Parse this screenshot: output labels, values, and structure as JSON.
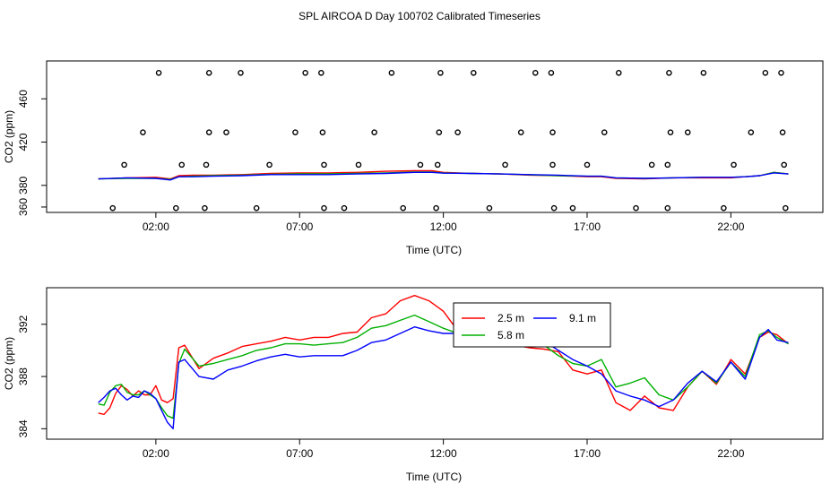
{
  "title": "SPL AIRCOA D  Day 100702  Calibrated Timeseries",
  "chart_data": [
    {
      "type": "scatter",
      "xlabel": "Time (UTC)",
      "ylabel": "CO2 (ppm)",
      "xlim": [
        -1.8,
        25.2
      ],
      "ylim": [
        355,
        495
      ],
      "xticks": [
        2,
        7,
        12,
        17,
        22
      ],
      "xtick_labels": [
        "02:00",
        "07:00",
        "12:00",
        "17:00",
        "22:00"
      ],
      "yticks": [
        360,
        380,
        420,
        460
      ],
      "ytick_labels": [
        "360",
        "380",
        "420",
        "460"
      ],
      "markers": [
        {
          "x": 2.1,
          "y": 484
        },
        {
          "x": 3.85,
          "y": 484
        },
        {
          "x": 4.95,
          "y": 484
        },
        {
          "x": 7.2,
          "y": 484
        },
        {
          "x": 7.75,
          "y": 484
        },
        {
          "x": 10.2,
          "y": 484
        },
        {
          "x": 11.9,
          "y": 484
        },
        {
          "x": 13.05,
          "y": 484
        },
        {
          "x": 15.2,
          "y": 484
        },
        {
          "x": 15.75,
          "y": 484
        },
        {
          "x": 18.1,
          "y": 484
        },
        {
          "x": 19.85,
          "y": 484
        },
        {
          "x": 21.05,
          "y": 484
        },
        {
          "x": 23.2,
          "y": 484
        },
        {
          "x": 23.75,
          "y": 484
        },
        {
          "x": 1.55,
          "y": 429
        },
        {
          "x": 3.85,
          "y": 429
        },
        {
          "x": 4.45,
          "y": 429
        },
        {
          "x": 6.85,
          "y": 429
        },
        {
          "x": 7.8,
          "y": 429
        },
        {
          "x": 9.6,
          "y": 429
        },
        {
          "x": 11.85,
          "y": 429
        },
        {
          "x": 12.5,
          "y": 429
        },
        {
          "x": 14.7,
          "y": 429
        },
        {
          "x": 15.8,
          "y": 429
        },
        {
          "x": 17.6,
          "y": 429
        },
        {
          "x": 19.9,
          "y": 429
        },
        {
          "x": 20.5,
          "y": 429
        },
        {
          "x": 22.7,
          "y": 429
        },
        {
          "x": 23.8,
          "y": 429
        },
        {
          "x": 0.9,
          "y": 399
        },
        {
          "x": 2.9,
          "y": 399
        },
        {
          "x": 3.75,
          "y": 399
        },
        {
          "x": 5.95,
          "y": 399
        },
        {
          "x": 7.85,
          "y": 399
        },
        {
          "x": 9.05,
          "y": 399
        },
        {
          "x": 11.2,
          "y": 399
        },
        {
          "x": 11.8,
          "y": 399
        },
        {
          "x": 14.15,
          "y": 399
        },
        {
          "x": 15.8,
          "y": 399
        },
        {
          "x": 17.0,
          "y": 399
        },
        {
          "x": 19.25,
          "y": 399
        },
        {
          "x": 19.8,
          "y": 399
        },
        {
          "x": 22.1,
          "y": 399
        },
        {
          "x": 23.85,
          "y": 399
        },
        {
          "x": 0.5,
          "y": 359
        },
        {
          "x": 2.7,
          "y": 359
        },
        {
          "x": 3.7,
          "y": 359
        },
        {
          "x": 5.5,
          "y": 359
        },
        {
          "x": 7.85,
          "y": 359
        },
        {
          "x": 8.55,
          "y": 359
        },
        {
          "x": 10.6,
          "y": 359
        },
        {
          "x": 11.75,
          "y": 359
        },
        {
          "x": 13.6,
          "y": 359
        },
        {
          "x": 15.85,
          "y": 359
        },
        {
          "x": 16.5,
          "y": 359
        },
        {
          "x": 18.7,
          "y": 359
        },
        {
          "x": 19.8,
          "y": 359
        },
        {
          "x": 21.75,
          "y": 359
        },
        {
          "x": 23.9,
          "y": 359
        }
      ],
      "series": [
        {
          "color": "#ff0000",
          "x": [
            0,
            1,
            2,
            2.5,
            2.8,
            3.3,
            4,
            5,
            6,
            7,
            8,
            9,
            10,
            11,
            11.6,
            12,
            13,
            14,
            15,
            16,
            17,
            17.5,
            18,
            19,
            20,
            21,
            22,
            22.5,
            23,
            23.5,
            24
          ],
          "values": [
            386,
            387,
            387.5,
            386,
            389,
            389.5,
            389.5,
            390,
            391,
            391.5,
            391.5,
            392,
            393,
            393.5,
            393.5,
            392,
            391,
            390.5,
            389.5,
            389,
            388,
            388,
            386.5,
            386,
            387,
            387,
            387,
            388,
            389,
            392,
            390.5
          ]
        },
        {
          "color": "#00b000",
          "x": [
            0,
            1,
            2,
            2.5,
            2.8,
            3.3,
            4,
            5,
            6,
            7,
            8,
            9,
            10,
            11,
            11.6,
            12,
            13,
            14,
            15,
            16,
            17,
            17.5,
            18,
            19,
            20,
            21,
            22,
            22.5,
            23,
            23.5,
            24
          ],
          "values": [
            386,
            386.5,
            386.5,
            385.5,
            388,
            388.5,
            389,
            389.5,
            390.3,
            390.7,
            390.7,
            391,
            391.5,
            392.3,
            392.3,
            391.5,
            391,
            390.5,
            389.8,
            389,
            388.5,
            388.5,
            387,
            386.5,
            387,
            387.5,
            387.5,
            388,
            389,
            392,
            390.5
          ]
        },
        {
          "color": "#0000ff",
          "x": [
            0,
            1,
            2,
            2.5,
            2.8,
            3.3,
            4,
            5,
            6,
            7,
            8,
            9,
            10,
            11,
            11.6,
            12,
            13,
            14,
            15,
            16,
            17,
            17.5,
            18,
            19,
            20,
            21,
            22,
            22.5,
            23,
            23.5,
            24
          ],
          "values": [
            386,
            387,
            386.5,
            385,
            388,
            388,
            388.5,
            389,
            390,
            390,
            390,
            390.5,
            391,
            392,
            392,
            391.3,
            391,
            390.5,
            390,
            389.5,
            388.5,
            388.5,
            387,
            386.5,
            387,
            387.5,
            387.5,
            388,
            389,
            391.5,
            390.5
          ]
        }
      ]
    },
    {
      "type": "line",
      "xlabel": "Time (UTC)",
      "ylabel": "CO2 (ppm)",
      "xlim": [
        -1.8,
        25.2
      ],
      "ylim": [
        383.2,
        394.8
      ],
      "xticks": [
        2,
        7,
        12,
        17,
        22
      ],
      "xtick_labels": [
        "02:00",
        "07:00",
        "12:00",
        "17:00",
        "22:00"
      ],
      "yticks": [
        384,
        388,
        392
      ],
      "ytick_labels": [
        "384",
        "388",
        "392"
      ],
      "legend": {
        "position": "top-right",
        "entries": [
          {
            "name": "2.5 m",
            "color": "#ff0000"
          },
          {
            "name": "9.1 m",
            "color": "#0000ff"
          },
          {
            "name": "5.8 m",
            "color": "#00b000"
          }
        ]
      },
      "series": [
        {
          "name": "2.5 m",
          "color": "#ff0000",
          "x": [
            0,
            0.2,
            0.4,
            0.6,
            0.8,
            1,
            1.2,
            1.4,
            1.6,
            1.8,
            2,
            2.2,
            2.4,
            2.6,
            2.8,
            3,
            3.5,
            4,
            4.5,
            5,
            5.5,
            6,
            6.5,
            7,
            7.5,
            8,
            8.5,
            9,
            9.5,
            10,
            10.5,
            11,
            11.5,
            12,
            12.5,
            13,
            13.5,
            14,
            14.5,
            15,
            15.5,
            16,
            16.5,
            17,
            17.5,
            18,
            18.5,
            19,
            19.5,
            20,
            20.5,
            21,
            21.5,
            22,
            22.5,
            23,
            23.3,
            23.6,
            24
          ],
          "values": [
            385.2,
            385.1,
            385.6,
            386.7,
            387.3,
            387.0,
            386.5,
            386.9,
            386.6,
            386.6,
            387.3,
            386.2,
            386.0,
            386.3,
            390.2,
            390.4,
            388.6,
            389.4,
            389.8,
            390.3,
            390.5,
            390.7,
            391.0,
            390.8,
            391.0,
            391.0,
            391.3,
            391.4,
            392.5,
            392.8,
            393.8,
            394.2,
            393.8,
            393.0,
            391.5,
            391.3,
            391.0,
            390.8,
            390.4,
            390.2,
            390.1,
            389.9,
            388.5,
            388.2,
            388.5,
            386.0,
            385.4,
            386.5,
            385.6,
            385.4,
            387.2,
            388.4,
            387.4,
            389.3,
            388.2,
            391.0,
            391.4,
            391.2,
            390.5
          ]
        },
        {
          "name": "5.8 m",
          "color": "#00b000",
          "x": [
            0,
            0.2,
            0.4,
            0.6,
            0.8,
            1,
            1.2,
            1.4,
            1.6,
            1.8,
            2,
            2.2,
            2.4,
            2.6,
            2.8,
            3,
            3.5,
            4,
            4.5,
            5,
            5.5,
            6,
            6.5,
            7,
            7.5,
            8,
            8.5,
            9,
            9.5,
            10,
            10.5,
            11,
            11.5,
            12,
            12.5,
            13,
            13.5,
            14,
            14.5,
            15,
            15.5,
            16,
            16.5,
            17,
            17.5,
            18,
            18.5,
            19,
            19.5,
            20,
            20.5,
            21,
            21.5,
            22,
            22.5,
            23,
            23.3,
            23.6,
            24
          ],
          "values": [
            385.9,
            385.8,
            386.8,
            387.3,
            387.4,
            386.8,
            386.6,
            386.6,
            386.9,
            386.6,
            386.3,
            385.6,
            385.0,
            384.8,
            389.0,
            390.1,
            388.8,
            389.0,
            389.3,
            389.6,
            390.0,
            390.2,
            390.5,
            390.5,
            390.4,
            390.5,
            390.6,
            391.0,
            391.7,
            391.9,
            392.3,
            392.7,
            392.2,
            391.7,
            391.3,
            391.2,
            391.0,
            390.7,
            390.6,
            390.5,
            390.4,
            389.6,
            389.0,
            388.8,
            389.3,
            387.2,
            387.5,
            387.9,
            386.6,
            386.2,
            387.2,
            388.4,
            387.5,
            389.1,
            388.0,
            391.2,
            391.5,
            391.0,
            390.5
          ]
        },
        {
          "name": "9.1 m",
          "color": "#0000ff",
          "x": [
            0,
            0.2,
            0.4,
            0.6,
            0.8,
            1,
            1.2,
            1.4,
            1.6,
            1.8,
            2,
            2.2,
            2.4,
            2.6,
            2.8,
            3,
            3.5,
            4,
            4.5,
            5,
            5.5,
            6,
            6.5,
            7,
            7.5,
            8,
            8.5,
            9,
            9.5,
            10,
            10.5,
            11,
            11.5,
            12,
            12.5,
            13,
            13.5,
            14,
            14.5,
            15,
            15.5,
            16,
            16.5,
            17,
            17.5,
            18,
            18.5,
            19,
            19.5,
            20,
            20.5,
            21,
            21.5,
            22,
            22.5,
            23,
            23.3,
            23.6,
            24
          ],
          "values": [
            386.0,
            386.4,
            386.9,
            387.1,
            386.6,
            386.2,
            386.5,
            386.4,
            386.9,
            386.7,
            386.3,
            385.4,
            384.5,
            384.0,
            389.1,
            389.3,
            388.0,
            387.8,
            388.5,
            388.8,
            389.2,
            389.5,
            389.7,
            389.5,
            389.6,
            389.6,
            389.6,
            390.0,
            390.6,
            390.8,
            391.3,
            391.8,
            391.5,
            391.3,
            391.3,
            391.3,
            391.0,
            391.0,
            390.8,
            390.8,
            390.7,
            390.0,
            389.3,
            388.8,
            388.2,
            386.9,
            386.5,
            386.2,
            385.7,
            386.2,
            387.5,
            388.4,
            387.6,
            389.1,
            387.8,
            391.0,
            391.6,
            390.8,
            390.6
          ]
        }
      ]
    }
  ]
}
